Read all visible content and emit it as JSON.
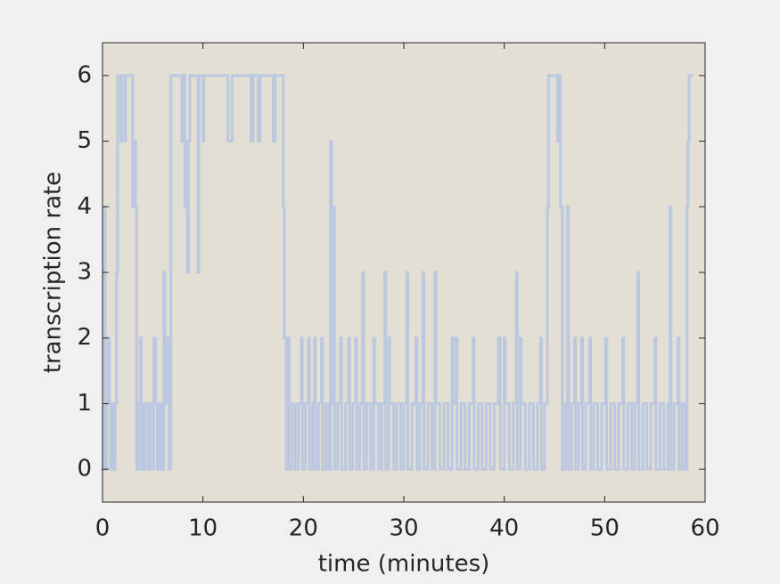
{
  "chart_data": {
    "type": "stairs",
    "xlabel": "time (minutes)",
    "ylabel": "transcription rate",
    "color": "#bcc8e0",
    "background": "#e4dfd4",
    "xlim": [
      0,
      60
    ],
    "xticks": [
      0,
      10,
      20,
      30,
      40,
      50,
      60
    ],
    "ylim": [
      -0.5,
      6.5
    ],
    "yticks": [
      0,
      1,
      2,
      3,
      4,
      5,
      6
    ],
    "grid": false,
    "x": [
      0,
      0.15,
      0.25,
      0.4,
      0.55,
      0.7,
      0.8,
      0.95,
      1.1,
      1.25,
      1.4,
      1.5,
      1.8,
      1.9,
      2.2,
      2.3,
      3.0,
      3.1,
      3.3,
      3.4,
      3.55,
      3.75,
      3.85,
      4.1,
      4.3,
      4.6,
      4.8,
      5.1,
      5.3,
      5.45,
      5.7,
      5.9,
      6.1,
      6.2,
      6.4,
      6.6,
      6.8,
      7.9,
      8.0,
      8.2,
      8.3,
      8.45,
      8.55,
      8.7,
      9.5,
      9.6,
      10.0,
      10.1,
      12.5,
      12.9,
      14.8,
      15.0,
      15.5,
      15.7,
      17.0,
      17.2,
      18.0,
      18.1,
      18.3,
      18.5,
      18.6,
      18.9,
      19.2,
      19.5,
      19.8,
      19.9,
      20.2,
      20.5,
      20.6,
      20.9,
      21.1,
      21.2,
      21.5,
      21.8,
      21.9,
      22.2,
      22.5,
      22.7,
      22.8,
      23.0,
      23.1,
      23.4,
      23.7,
      23.8,
      24.2,
      24.5,
      24.6,
      24.9,
      25.2,
      25.3,
      25.6,
      25.9,
      26.0,
      26.3,
      26.7,
      27.0,
      27.1,
      27.5,
      27.8,
      28.1,
      28.2,
      28.5,
      28.6,
      29.0,
      29.3,
      29.7,
      30.0,
      30.3,
      30.4,
      30.8,
      31.2,
      31.3,
      31.6,
      31.9,
      32.0,
      32.4,
      32.8,
      33.1,
      33.2,
      33.6,
      34.0,
      34.4,
      34.8,
      34.9,
      35.2,
      35.3,
      35.7,
      36.1,
      36.5,
      36.9,
      37.0,
      37.4,
      37.8,
      38.2,
      38.6,
      39.0,
      39.4,
      39.6,
      40.0,
      40.1,
      40.5,
      40.9,
      41.2,
      41.3,
      41.6,
      41.7,
      42.1,
      42.5,
      42.9,
      43.3,
      43.6,
      43.7,
      44.0,
      44.3,
      44.4,
      45.3,
      45.5,
      45.6,
      45.8,
      46.1,
      46.3,
      46.4,
      46.7,
      47.0,
      47.1,
      47.4,
      47.7,
      47.8,
      48.1,
      48.5,
      48.6,
      48.9,
      49.3,
      49.7,
      50.1,
      50.2,
      50.6,
      51.0,
      51.4,
      51.8,
      51.9,
      52.3,
      52.7,
      53.0,
      53.3,
      53.4,
      53.8,
      54.2,
      54.6,
      55.0,
      55.1,
      55.5,
      55.9,
      56.3,
      56.5,
      56.6,
      56.9,
      57.3,
      57.4,
      57.7,
      58.0,
      58.2,
      58.3,
      58.4,
      58.6
    ],
    "values": [
      0,
      4,
      0,
      1,
      2,
      1,
      0,
      1,
      0,
      1,
      3,
      6,
      5,
      6,
      5,
      6,
      4,
      5,
      4,
      0,
      1,
      2,
      0,
      1,
      0,
      1,
      0,
      2,
      1,
      0,
      1,
      0,
      3,
      1,
      2,
      0,
      6,
      5,
      6,
      4,
      5,
      3,
      5,
      6,
      3,
      6,
      5,
      6,
      5,
      6,
      5,
      6,
      5,
      6,
      5,
      6,
      4,
      2,
      0,
      2,
      0,
      1,
      0,
      1,
      2,
      0,
      1,
      2,
      0,
      1,
      2,
      0,
      1,
      2,
      0,
      1,
      0,
      5,
      1,
      4,
      0,
      1,
      2,
      0,
      1,
      2,
      0,
      1,
      2,
      0,
      1,
      3,
      0,
      1,
      0,
      2,
      1,
      0,
      1,
      3,
      0,
      2,
      1,
      0,
      1,
      0,
      1,
      3,
      0,
      1,
      2,
      0,
      1,
      3,
      0,
      1,
      0,
      3,
      1,
      0,
      1,
      0,
      2,
      1,
      2,
      0,
      1,
      0,
      1,
      2,
      0,
      1,
      0,
      1,
      0,
      1,
      2,
      0,
      2,
      1,
      0,
      1,
      3,
      0,
      2,
      1,
      0,
      1,
      0,
      1,
      2,
      0,
      1,
      4,
      6,
      5,
      6,
      4,
      0,
      1,
      4,
      0,
      1,
      2,
      0,
      1,
      2,
      0,
      1,
      2,
      0,
      1,
      0,
      1,
      2,
      0,
      1,
      0,
      1,
      2,
      0,
      1,
      0,
      1,
      3,
      0,
      1,
      0,
      1,
      2,
      0,
      1,
      0,
      1,
      4,
      0,
      1,
      2,
      0,
      1,
      0,
      4,
      5,
      6,
      6
    ]
  }
}
